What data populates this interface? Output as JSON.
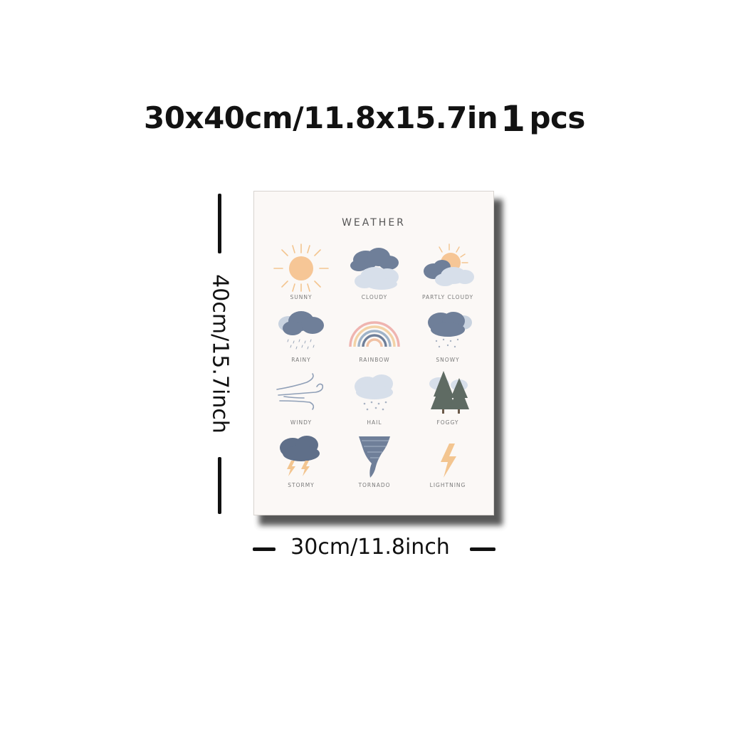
{
  "header": {
    "size_text": "30x40cm/11.8x15.7in",
    "qty_number": "1",
    "qty_unit": "pcs"
  },
  "dimensions": {
    "height_label": "40cm/15.7inch",
    "width_label": "30cm/11.8inch"
  },
  "poster": {
    "title": "WEATHER",
    "items": [
      {
        "label": "SUNNY",
        "icon": "sun-icon"
      },
      {
        "label": "CLOUDY",
        "icon": "cloud-icon"
      },
      {
        "label": "PARTLY CLOUDY",
        "icon": "partly-cloudy-icon"
      },
      {
        "label": "RAINY",
        "icon": "rain-cloud-icon"
      },
      {
        "label": "RAINBOW",
        "icon": "rainbow-icon"
      },
      {
        "label": "SNOWY",
        "icon": "snow-cloud-icon"
      },
      {
        "label": "WINDY",
        "icon": "wind-icon"
      },
      {
        "label": "HAIL",
        "icon": "hail-cloud-icon"
      },
      {
        "label": "FOGGY",
        "icon": "fog-trees-icon"
      },
      {
        "label": "STORMY",
        "icon": "storm-cloud-icon"
      },
      {
        "label": "TORNADO",
        "icon": "tornado-icon"
      },
      {
        "label": "LIGHTNING",
        "icon": "lightning-icon"
      }
    ]
  },
  "colors": {
    "sun": "#f5c48e",
    "cloud_dark": "#6f7f99",
    "cloud_light": "#d5dde8",
    "tree": "#5f6b63"
  }
}
